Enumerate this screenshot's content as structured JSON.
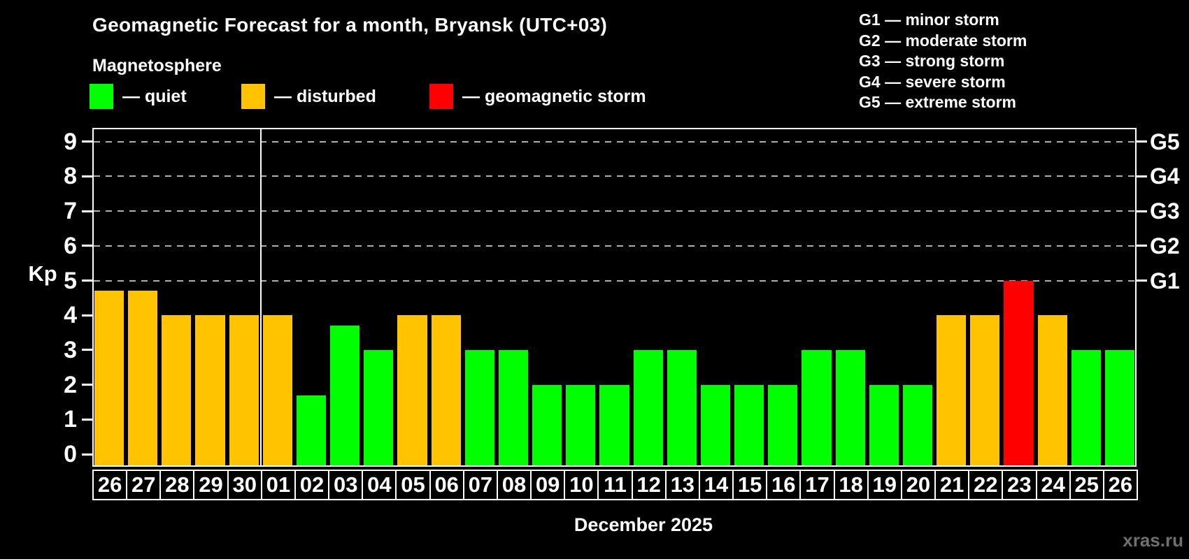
{
  "header": {
    "title": "Geomagnetic Forecast for a month, Bryansk (UTC+03)",
    "subtitle": "Magnetosphere"
  },
  "legend": {
    "items": [
      {
        "key": "quiet",
        "label": "— quiet"
      },
      {
        "key": "disturbed",
        "label": "— disturbed"
      },
      {
        "key": "storm",
        "label": "— geomagnetic storm"
      }
    ]
  },
  "storm_scale_legend": {
    "items": [
      "G1 — minor storm",
      "G2 — moderate storm",
      "G3 — strong storm",
      "G4 — severe storm",
      "G5 — extreme storm"
    ]
  },
  "chart_data": {
    "type": "bar",
    "title": "Geomagnetic Forecast for a month, Bryansk (UTC+03)",
    "ylabel": "Kp",
    "xlabel": "December 2025",
    "ylim": [
      0,
      9
    ],
    "yticks": [
      0,
      1,
      2,
      3,
      4,
      5,
      6,
      7,
      8,
      9
    ],
    "gridlines_at_kp": [
      5,
      6,
      7,
      8,
      9
    ],
    "grid": "dashed-horizontal",
    "legend_position": "top-left",
    "right_axis": [
      {
        "label": "G1",
        "kp": 5
      },
      {
        "label": "G2",
        "kp": 6
      },
      {
        "label": "G3",
        "kp": 7
      },
      {
        "label": "G4",
        "kp": 8
      },
      {
        "label": "G5",
        "kp": 9
      }
    ],
    "colors": {
      "quiet": "#00ff00",
      "disturbed": "#ffc300",
      "storm": "#ff0000"
    },
    "month_divider_after_index": 4,
    "days": [
      {
        "label": "26",
        "kp": 4.7,
        "status": "disturbed"
      },
      {
        "label": "27",
        "kp": 4.7,
        "status": "disturbed"
      },
      {
        "label": "28",
        "kp": 4.0,
        "status": "disturbed"
      },
      {
        "label": "29",
        "kp": 4.0,
        "status": "disturbed"
      },
      {
        "label": "30",
        "kp": 4.0,
        "status": "disturbed"
      },
      {
        "label": "01",
        "kp": 4.0,
        "status": "disturbed"
      },
      {
        "label": "02",
        "kp": 1.7,
        "status": "quiet"
      },
      {
        "label": "03",
        "kp": 3.7,
        "status": "quiet"
      },
      {
        "label": "04",
        "kp": 3.0,
        "status": "quiet"
      },
      {
        "label": "05",
        "kp": 4.0,
        "status": "disturbed"
      },
      {
        "label": "06",
        "kp": 4.0,
        "status": "disturbed"
      },
      {
        "label": "07",
        "kp": 3.0,
        "status": "quiet"
      },
      {
        "label": "08",
        "kp": 3.0,
        "status": "quiet"
      },
      {
        "label": "09",
        "kp": 2.0,
        "status": "quiet"
      },
      {
        "label": "10",
        "kp": 2.0,
        "status": "quiet"
      },
      {
        "label": "11",
        "kp": 2.0,
        "status": "quiet"
      },
      {
        "label": "12",
        "kp": 3.0,
        "status": "quiet"
      },
      {
        "label": "13",
        "kp": 3.0,
        "status": "quiet"
      },
      {
        "label": "14",
        "kp": 2.0,
        "status": "quiet"
      },
      {
        "label": "15",
        "kp": 2.0,
        "status": "quiet"
      },
      {
        "label": "16",
        "kp": 2.0,
        "status": "quiet"
      },
      {
        "label": "17",
        "kp": 3.0,
        "status": "quiet"
      },
      {
        "label": "18",
        "kp": 3.0,
        "status": "quiet"
      },
      {
        "label": "19",
        "kp": 2.0,
        "status": "quiet"
      },
      {
        "label": "20",
        "kp": 2.0,
        "status": "quiet"
      },
      {
        "label": "21",
        "kp": 4.0,
        "status": "disturbed"
      },
      {
        "label": "22",
        "kp": 4.0,
        "status": "disturbed"
      },
      {
        "label": "23",
        "kp": 5.0,
        "status": "storm"
      },
      {
        "label": "24",
        "kp": 4.0,
        "status": "disturbed"
      },
      {
        "label": "25",
        "kp": 3.0,
        "status": "quiet"
      },
      {
        "label": "26",
        "kp": 3.0,
        "status": "quiet"
      }
    ]
  },
  "footer": {
    "xaxis_title": "December 2025",
    "watermark": "xras.ru"
  }
}
